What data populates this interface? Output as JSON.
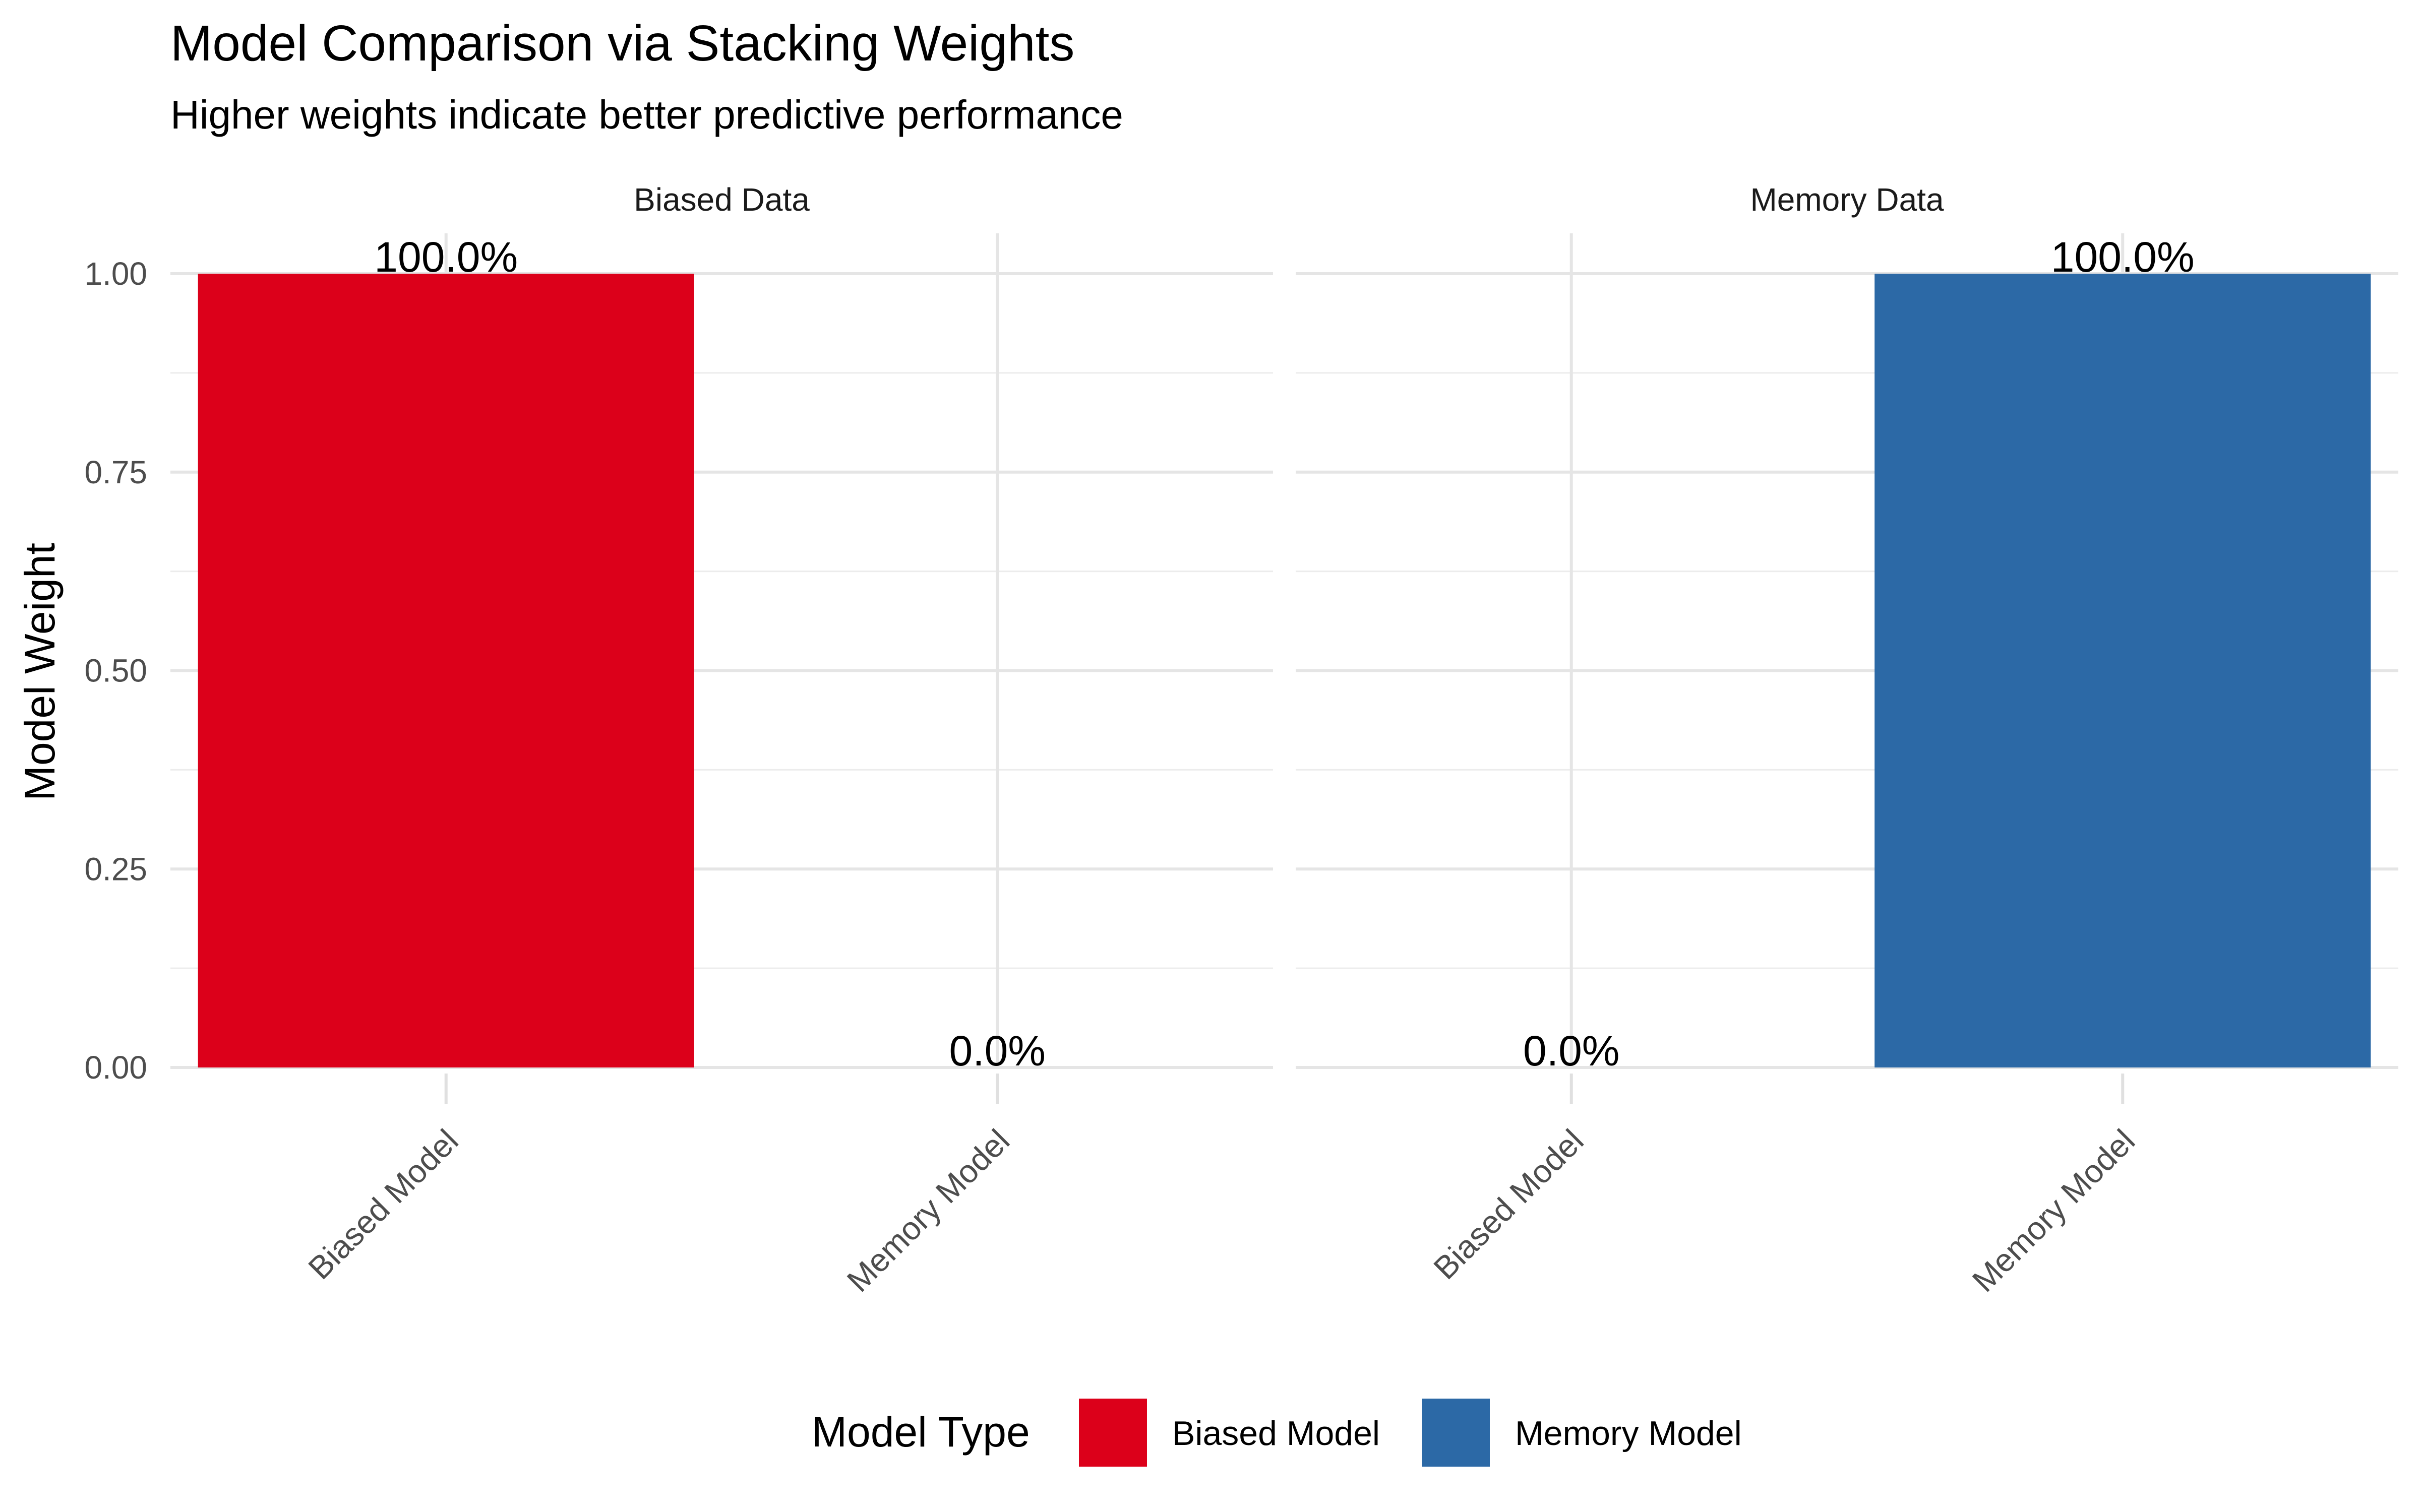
{
  "chart_data": {
    "type": "bar",
    "title": "Model Comparison via Stacking Weights",
    "subtitle": "Higher weights indicate better predictive performance",
    "xlabel": "",
    "ylabel": "Model Weight",
    "ylim": [
      0,
      1
    ],
    "yticks": [
      "0.00",
      "0.25",
      "0.50",
      "0.75",
      "1.00"
    ],
    "ytick_values": [
      0,
      0.25,
      0.5,
      0.75,
      1.0
    ],
    "categories": [
      "Biased Model",
      "Memory Model"
    ],
    "grid": true,
    "legend": {
      "title": "Model Type",
      "position": "bottom",
      "entries": [
        {
          "name": "Biased Model",
          "color": "#DC001A"
        },
        {
          "name": "Memory Model",
          "color": "#2C69A6"
        }
      ]
    },
    "facets": [
      {
        "name": "Biased Data",
        "bars": [
          {
            "category": "Biased Model",
            "value": 1.0,
            "label": "100.0%",
            "color": "#DC001A"
          },
          {
            "category": "Memory Model",
            "value": 0.0,
            "label": "0.0%",
            "color": "#2C69A6"
          }
        ]
      },
      {
        "name": "Memory Data",
        "bars": [
          {
            "category": "Biased Model",
            "value": 0.0,
            "label": "0.0%",
            "color": "#DC001A"
          },
          {
            "category": "Memory Model",
            "value": 1.0,
            "label": "100.0%",
            "color": "#2C69A6"
          }
        ]
      }
    ]
  }
}
